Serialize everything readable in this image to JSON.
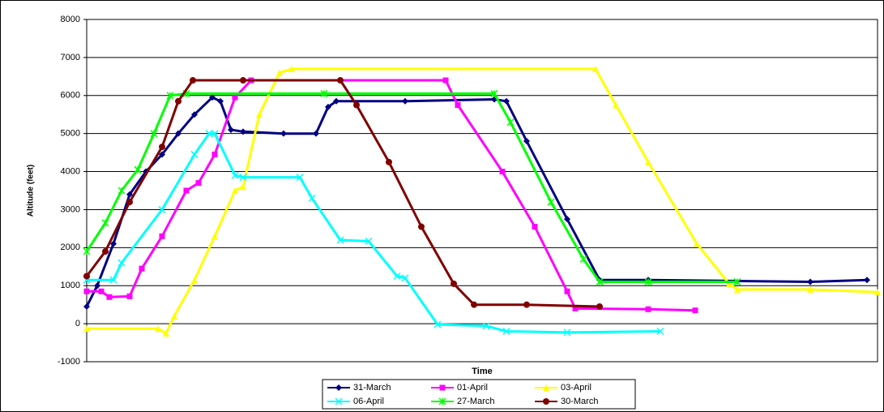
{
  "chart_data": {
    "type": "line",
    "y_label": "Altitude (feet)",
    "x_label": "Time",
    "xlim": [
      0,
      97.6
    ],
    "ylim": [
      -1000,
      8000
    ],
    "yticks": [
      -1000,
      0,
      1000,
      2000,
      3000,
      4000,
      5000,
      6000,
      7000,
      8000
    ],
    "grid": true,
    "legend": "bottom",
    "series": [
      {
        "name": "31-March",
        "color": "#000080",
        "marker": "diamond",
        "x": [
          0,
          1.3,
          3.3,
          5.3,
          7.3,
          9.3,
          11.3,
          13.3,
          15.5,
          16.5,
          17.8,
          19.3,
          24.3,
          28.3,
          29.8,
          30.8,
          39.3,
          50.3,
          51.8,
          54.3,
          59.3,
          63.3,
          69.3,
          89.3,
          96.3
        ],
        "values": [
          450,
          1000,
          2100,
          3400,
          4000,
          4450,
          5000,
          5500,
          5950,
          5850,
          5100,
          5050,
          5000,
          5000,
          5700,
          5850,
          5850,
          5900,
          5850,
          4800,
          2750,
          1150,
          1150,
          1100,
          1150
        ]
      },
      {
        "name": "01-April",
        "color": "#ff00ff",
        "marker": "square",
        "x": [
          0,
          1.8,
          2.8,
          5.3,
          6.8,
          9.3,
          12.3,
          13.8,
          15.8,
          18.3,
          20.3,
          44.3,
          45.8,
          51.3,
          55.3,
          59.3,
          60.3,
          69.3,
          75.1
        ],
        "values": [
          850,
          850,
          700,
          720,
          1450,
          2300,
          3500,
          3700,
          4450,
          5950,
          6400,
          6400,
          5750,
          4000,
          2550,
          850,
          400,
          380,
          350
        ]
      },
      {
        "name": "03-April",
        "color": "#ffff00",
        "marker": "triangle",
        "x": [
          0,
          8.8,
          9.8,
          10.8,
          13.3,
          15.8,
          18.3,
          19.3,
          21.3,
          23.8,
          25.3,
          62.8,
          65.3,
          69.3,
          75.3,
          79.3,
          80.3,
          89.3,
          97.6
        ],
        "values": [
          -130,
          -130,
          -250,
          200,
          1150,
          2300,
          3500,
          3600,
          5500,
          6600,
          6700,
          6700,
          5750,
          4250,
          2100,
          1050,
          900,
          900,
          830
        ]
      },
      {
        "name": "06-April",
        "color": "#00ffff",
        "marker": "x",
        "x": [
          0,
          3.3,
          4.3,
          9.3,
          13.3,
          15.1,
          15.8,
          18.3,
          19.3,
          26.3,
          27.8,
          31.3,
          34.8,
          38.3,
          39.3,
          43.3,
          49.3,
          51.8,
          59.3,
          70.8
        ],
        "values": [
          1150,
          1150,
          1600,
          3000,
          4450,
          5000,
          5000,
          3900,
          3850,
          3850,
          3300,
          2200,
          2170,
          1250,
          1200,
          -20,
          -60,
          -200,
          -230,
          -200
        ]
      },
      {
        "name": "27-March",
        "color": "#00ff00",
        "marker": "star",
        "x": [
          0,
          2.3,
          4.3,
          6.3,
          8.3,
          10.3,
          12.3,
          29.3,
          50.3,
          52.3,
          57.3,
          61.3,
          63.3,
          69.3,
          80.3
        ],
        "values": [
          1900,
          2650,
          3500,
          4050,
          5000,
          6000,
          6050,
          6050,
          6050,
          5300,
          3200,
          1700,
          1100,
          1100,
          1100
        ]
      },
      {
        "name": "30-March",
        "color": "#800000",
        "marker": "circle",
        "x": [
          0,
          2.3,
          5.3,
          9.3,
          11.3,
          13.1,
          19.3,
          31.3,
          33.3,
          37.3,
          41.3,
          45.3,
          47.8,
          54.3,
          63.3
        ],
        "values": [
          1250,
          1900,
          3200,
          4650,
          5850,
          6400,
          6400,
          6400,
          5750,
          4250,
          2550,
          1050,
          500,
          500,
          450
        ]
      }
    ]
  }
}
